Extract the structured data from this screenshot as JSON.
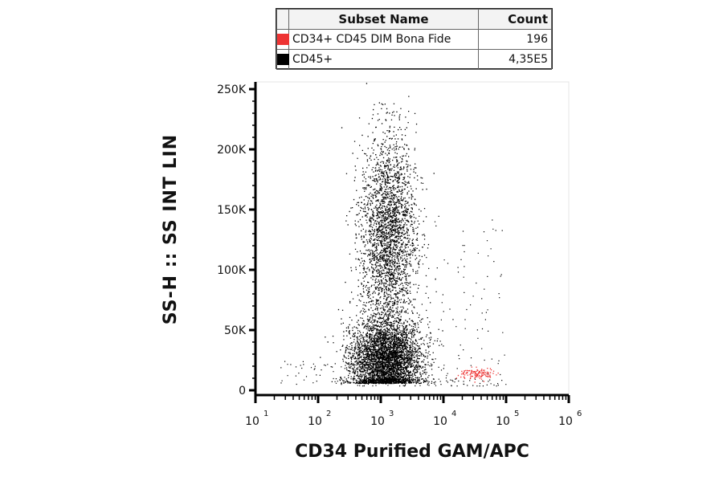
{
  "legend": {
    "header": {
      "name": "Subset Name",
      "count": "Count"
    },
    "rows": [
      {
        "color": "#ee3333",
        "name": "CD34+ CD45 DIM Bona Fide",
        "count": "196"
      },
      {
        "color": "#000000",
        "name": "CD45+",
        "count": "4,35E5"
      }
    ]
  },
  "chart_data": {
    "type": "scatter",
    "xlabel": "CD34 Purified GAM/APC",
    "ylabel": "SS-H :: SS INT LIN",
    "x_scale": "log",
    "x_range": [
      10,
      1000000
    ],
    "y_range": [
      0,
      260000
    ],
    "x_ticks": [
      {
        "base": "10",
        "exp": "1"
      },
      {
        "base": "10",
        "exp": "2"
      },
      {
        "base": "10",
        "exp": "3"
      },
      {
        "base": "10",
        "exp": "4"
      },
      {
        "base": "10",
        "exp": "5"
      },
      {
        "base": "10",
        "exp": "6"
      }
    ],
    "y_ticks": [
      {
        "value": 0,
        "label": "0"
      },
      {
        "value": 50000,
        "label": "50K"
      },
      {
        "value": 100000,
        "label": "100K"
      },
      {
        "value": 150000,
        "label": "150K"
      },
      {
        "value": 200000,
        "label": "200K"
      },
      {
        "value": 250000,
        "label": "250K"
      }
    ],
    "series": [
      {
        "name": "CD45+",
        "color": "#000000",
        "count": "4,35E5",
        "populations": [
          {
            "x_center": 1200,
            "y_center": 25000,
            "x_spread_log": 0.28,
            "y_spread": 17000
          },
          {
            "x_center": 1300,
            "y_center": 130000,
            "x_spread_log": 0.22,
            "y_spread": 42000
          }
        ]
      },
      {
        "name": "CD34+ CD45 DIM Bona Fide",
        "color": "#ee3333",
        "count": "196",
        "populations": [
          {
            "x_center": 35000,
            "y_center": 14000,
            "x_spread_log": 0.15,
            "y_spread": 2500
          }
        ]
      }
    ]
  }
}
